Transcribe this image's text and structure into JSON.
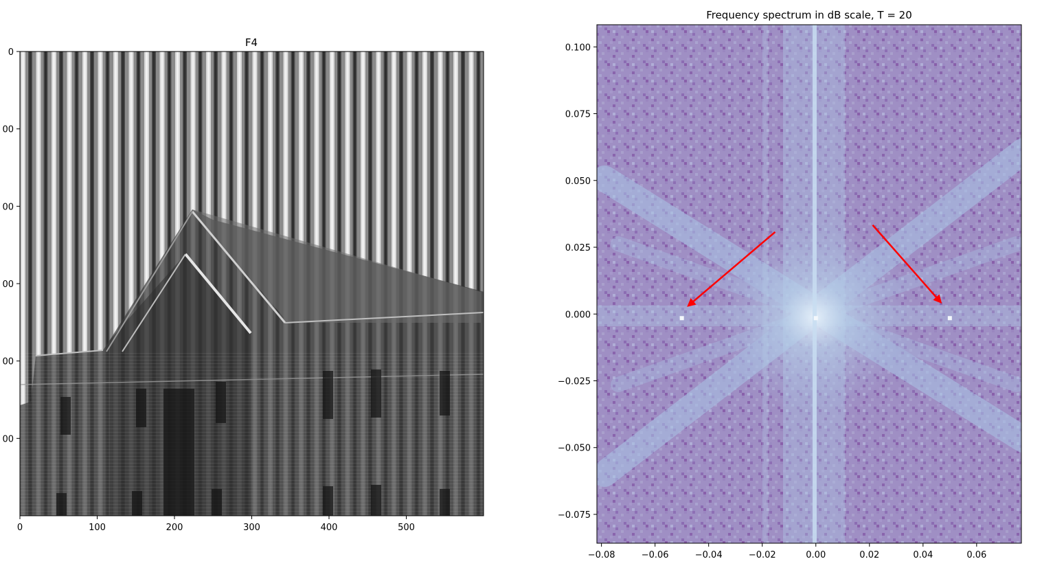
{
  "chart_data": [
    {
      "type": "heatmap",
      "title": "F4",
      "description_tick_note": "",
      "x_ticks": [
        0,
        100,
        200,
        300,
        400,
        500
      ],
      "y_ticks_visible_labels": [
        "0",
        "00",
        "00",
        "00",
        "00",
        "00"
      ],
      "xlim": [
        0,
        600
      ],
      "ylim": [
        600,
        0
      ],
      "grid": false,
      "colormap": "gray"
    },
    {
      "type": "heatmap",
      "title": "Frequency spectrum in dB scale, T = 20",
      "x_ticks": [
        "−0.08",
        "−0.06",
        "−0.04",
        "−0.02",
        "0.00",
        "0.02",
        "0.04",
        "0.06"
      ],
      "y_ticks": [
        "0.100",
        "0.075",
        "0.050",
        "0.025",
        "0.000",
        "−0.025",
        "−0.050",
        "−0.075"
      ],
      "xlim": [
        -0.0817,
        0.0767
      ],
      "ylim": [
        -0.0858,
        0.1083
      ],
      "grid": false,
      "colormap": "BuPu_r",
      "peaks": [
        {
          "x": -0.05,
          "y": 0.0
        },
        {
          "x": 0.05,
          "y": 0.0
        },
        {
          "x": 0.0,
          "y": 0.0
        }
      ],
      "annotations": [
        {
          "type": "arrow",
          "color": "#ff0000",
          "from": {
            "x": -0.0152,
            "y": 0.0307
          },
          "to": {
            "x": -0.0476,
            "y": 0.0031
          }
        },
        {
          "type": "arrow",
          "color": "#ff0000",
          "from": {
            "x": 0.0212,
            "y": 0.0333
          },
          "to": {
            "x": 0.0466,
            "y": 0.0044
          }
        }
      ]
    }
  ]
}
